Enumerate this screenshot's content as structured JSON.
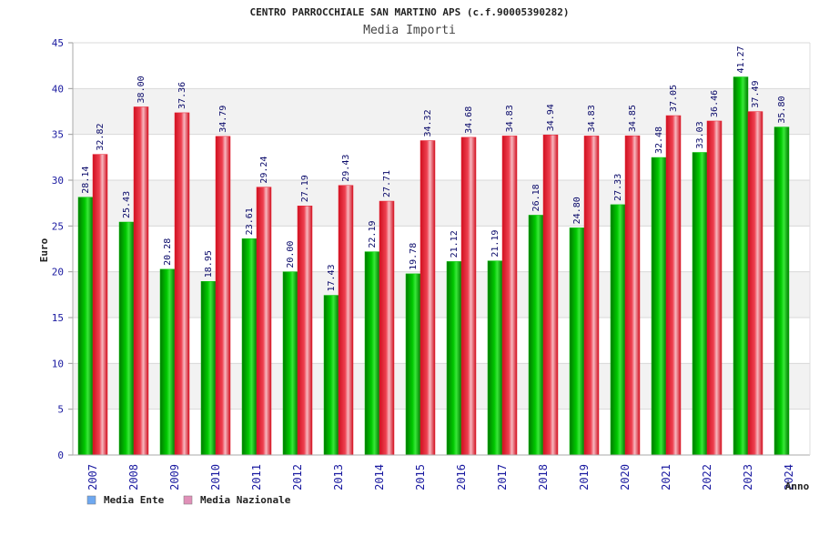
{
  "chart_data": {
    "type": "bar",
    "title": "CENTRO PARROCCHIALE SAN MARTINO APS (c.f.90005390282)",
    "subtitle": "Media Importi",
    "xlabel": "Anno",
    "ylabel": "Euro",
    "ylim": [
      0,
      45
    ],
    "yticks": [
      0,
      5,
      10,
      15,
      20,
      25,
      30,
      35,
      40,
      45
    ],
    "grid": true,
    "legend_position": "bottom-left",
    "categories": [
      "2007",
      "2008",
      "2009",
      "2010",
      "2011",
      "2012",
      "2013",
      "2014",
      "2015",
      "2016",
      "2017",
      "2018",
      "2019",
      "2020",
      "2021",
      "2022",
      "2023",
      "2024"
    ],
    "series": [
      {
        "name": "Media Ente",
        "color": "#00c000",
        "legend_color": "#6ea8f0",
        "values": [
          28.14,
          25.43,
          20.28,
          18.95,
          23.61,
          20.0,
          17.43,
          22.19,
          19.78,
          21.12,
          21.19,
          26.18,
          24.8,
          27.33,
          32.48,
          33.03,
          41.27,
          35.8
        ],
        "labels": [
          "28.14",
          "25.43",
          "20.28",
          "18.95",
          "23.61",
          "20.00",
          "17.43",
          "22.19",
          "19.78",
          "21.12",
          "21.19",
          "26.18",
          "24.80",
          "27.33",
          "32.48",
          "33.03",
          "41.27",
          "35.80"
        ]
      },
      {
        "name": "Media Nazionale",
        "color": "#e82030",
        "legend_color": "#e090b8",
        "values": [
          32.82,
          38.0,
          37.36,
          34.79,
          29.24,
          27.19,
          29.43,
          27.71,
          34.32,
          34.68,
          34.83,
          34.94,
          34.83,
          34.85,
          37.05,
          36.46,
          37.49,
          null
        ],
        "labels": [
          "32.82",
          "38.00",
          "37.36",
          "34.79",
          "29.24",
          "27.19",
          "29.43",
          "27.71",
          "34.32",
          "34.68",
          "34.83",
          "34.94",
          "34.83",
          "34.85",
          "37.05",
          "36.46",
          "37.49",
          ""
        ]
      }
    ]
  }
}
